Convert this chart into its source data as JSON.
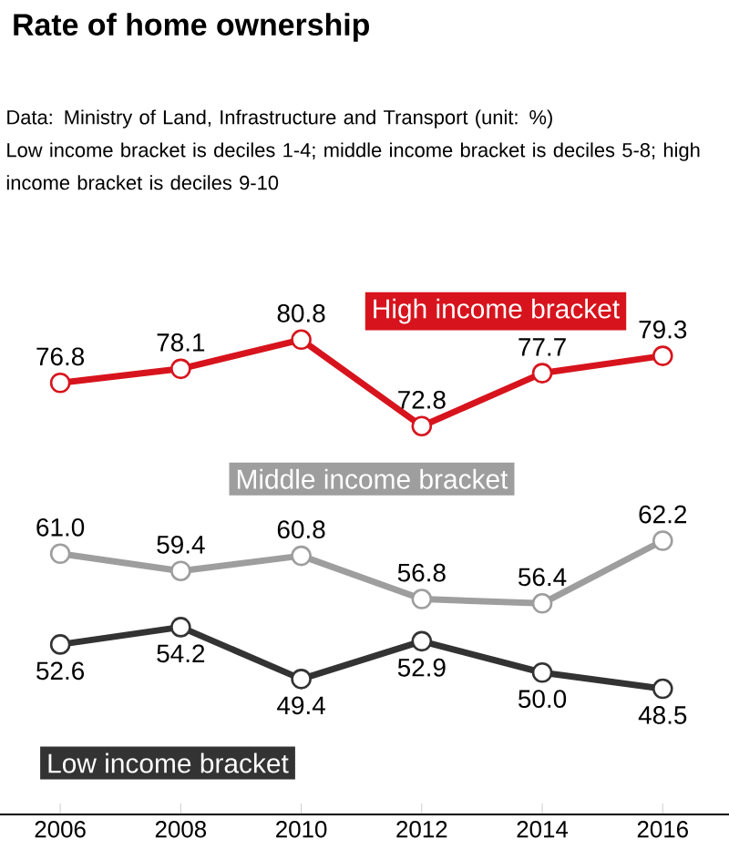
{
  "chart_data": {
    "type": "line",
    "title": "Rate of home ownership",
    "annotations": [
      "Data: Ministry of Land, Infrastructure and Transport (unit: %)",
      "Low income bracket is deciles 1-4; middle income bracket is deciles 5-8; high income bracket is deciles 9-10"
    ],
    "x": [
      2006,
      2008,
      2010,
      2012,
      2014,
      2016
    ],
    "series": [
      {
        "name": "High income bracket",
        "color": "#d7141d",
        "values": [
          76.8,
          78.1,
          80.8,
          72.8,
          77.7,
          79.3
        ],
        "value_labels": [
          "76.8",
          "78.1",
          "80.8",
          "72.8",
          "77.7",
          "79.3"
        ]
      },
      {
        "name": "Middle income bracket",
        "color": "#9e9e9e",
        "values": [
          61.0,
          59.4,
          60.8,
          56.8,
          56.4,
          62.2
        ],
        "value_labels": [
          "61.0",
          "59.4",
          "60.8",
          "56.8",
          "56.4",
          "62.2"
        ]
      },
      {
        "name": "Low income bracket",
        "color": "#333333",
        "values": [
          52.6,
          54.2,
          49.4,
          52.9,
          50.0,
          48.5
        ],
        "value_labels": [
          "52.6",
          "54.2",
          "49.4",
          "52.9",
          "50.0",
          "48.5"
        ]
      }
    ],
    "xlim": [
      2005,
      2017.1
    ],
    "xticks": [
      2006,
      2008,
      2010,
      2012,
      2014,
      2016
    ],
    "tick_labels": "x",
    "marker": "circle",
    "line_style": "solid",
    "grid": false,
    "legend": false
  }
}
